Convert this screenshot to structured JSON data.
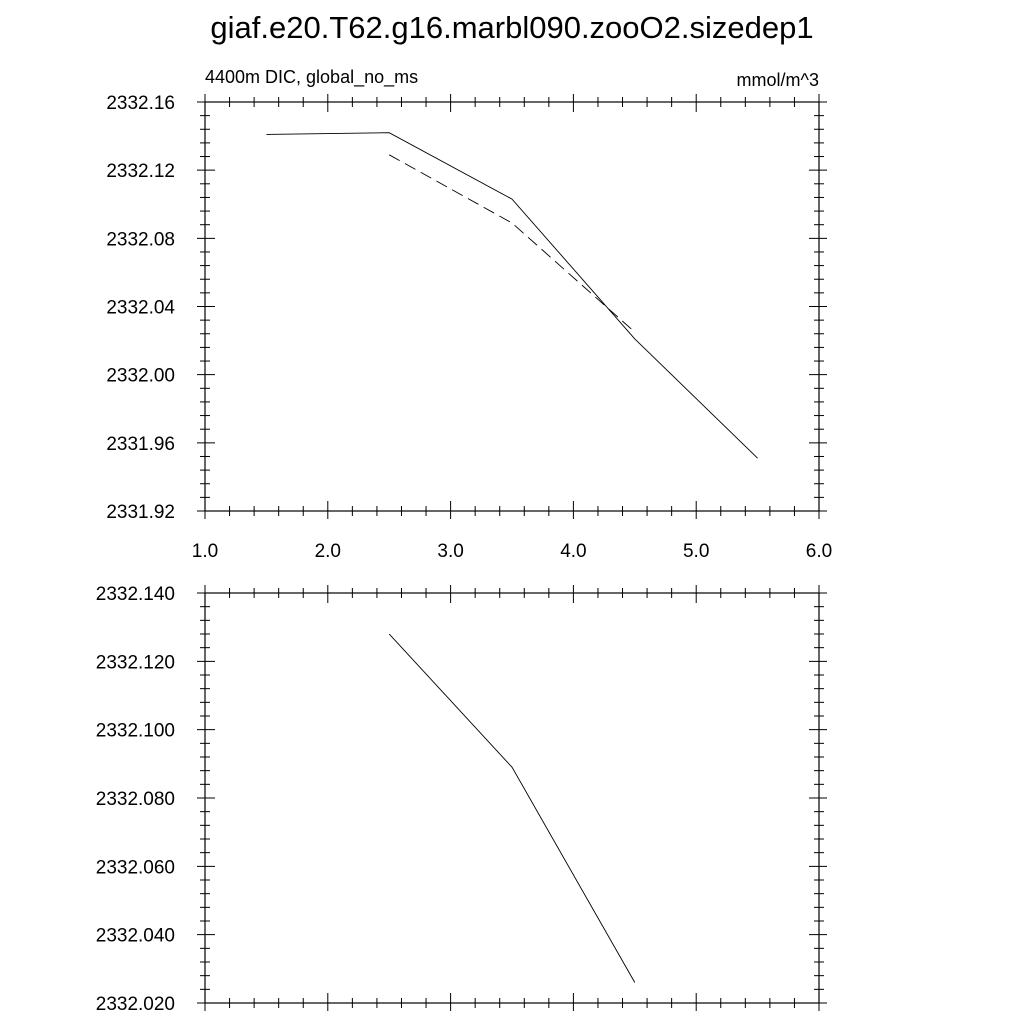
{
  "figure": {
    "title": "giaf.e20.T62.g16.marbl090.zooO2.sizedep1",
    "subtitle_left": "4400m DIC, global_no_ms",
    "subtitle_right": "mmol/m^3"
  },
  "chart_data": [
    {
      "type": "line",
      "xlim": [
        1.0,
        6.0
      ],
      "ylim": [
        2331.92,
        2332.16
      ],
      "x_ticks": [
        "1.0",
        "2.0",
        "3.0",
        "4.0",
        "5.0",
        "6.0"
      ],
      "y_ticks": [
        "2331.92",
        "2331.96",
        "2332.00",
        "2332.04",
        "2332.08",
        "2332.12",
        "2332.16"
      ],
      "grid": false,
      "series": [
        {
          "style": "solid",
          "x": [
            1.5,
            2.5,
            3.5,
            4.5,
            5.5
          ],
          "y": [
            2332.141,
            2332.142,
            2332.103,
            2332.021,
            2331.951
          ]
        },
        {
          "style": "dashed",
          "x": [
            2.5,
            3.5,
            4.5
          ],
          "y": [
            2332.129,
            2332.089,
            2332.025
          ]
        }
      ]
    },
    {
      "type": "line",
      "xlim": [
        1.0,
        6.0
      ],
      "ylim": [
        2332.02,
        2332.14
      ],
      "y_ticks": [
        "2332.020",
        "2332.040",
        "2332.060",
        "2332.080",
        "2332.100",
        "2332.120",
        "2332.140"
      ],
      "grid": false,
      "series": [
        {
          "style": "solid",
          "x": [
            2.5,
            3.5,
            4.5
          ],
          "y": [
            2332.128,
            2332.089,
            2332.026
          ]
        }
      ]
    }
  ]
}
